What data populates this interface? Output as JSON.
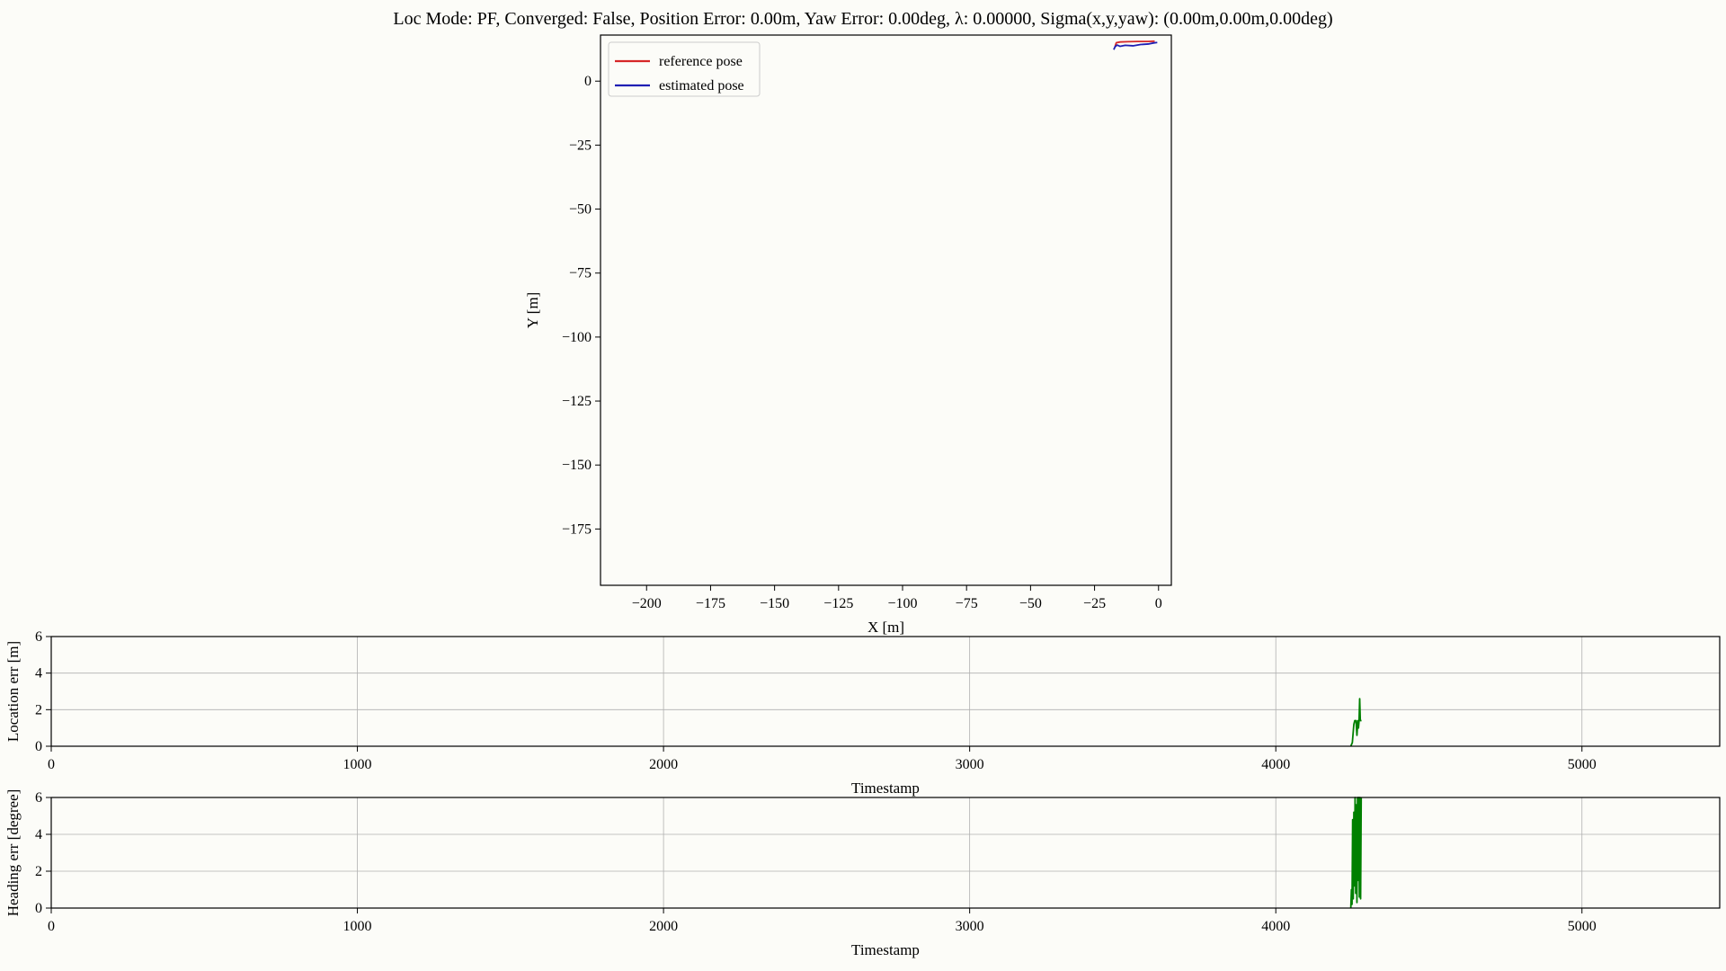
{
  "figure": {
    "title": "Loc Mode: PF, Converged: False, Position Error: 0.00m, Yaw Error: 0.00deg, λ: 0.00000, Sigma(x,y,yaw): (0.00m,0.00m,0.00deg)",
    "background": "#fcfcf8"
  },
  "chart_data": [
    {
      "type": "line",
      "xlabel": "X [m]",
      "ylabel": "Y [m]",
      "xlim": [
        -218,
        5
      ],
      "ylim": [
        -197,
        18
      ],
      "xticks": [
        -200,
        -175,
        -150,
        -125,
        -100,
        -75,
        -50,
        -25,
        0
      ],
      "yticks": [
        0,
        -25,
        -50,
        -75,
        -100,
        -125,
        -150,
        -175
      ],
      "grid": false,
      "legend_position": "top-left",
      "series": [
        {
          "name": "reference pose",
          "color": "#d62728",
          "x": [
            -17,
            -16.5,
            -15,
            -12,
            -8,
            -4,
            -1.5
          ],
          "y": [
            13.5,
            15.0,
            15.3,
            15.4,
            15.5,
            15.5,
            15.6
          ]
        },
        {
          "name": "estimated pose",
          "color": "#1f1fb4",
          "x": [
            -17.5,
            -17.0,
            -16.2,
            -15.0,
            -13.0,
            -10.0,
            -7.0,
            -4.0,
            -2.0,
            -0.5
          ],
          "y": [
            12.3,
            13.4,
            14.1,
            13.6,
            14.0,
            13.8,
            14.3,
            14.5,
            14.9,
            15.1
          ]
        }
      ]
    },
    {
      "type": "line",
      "xlabel": "Timestamp",
      "ylabel": "Location err [m]",
      "xlim": [
        0,
        5450
      ],
      "ylim": [
        0,
        6
      ],
      "xticks": [
        0,
        1000,
        2000,
        3000,
        4000,
        5000
      ],
      "yticks": [
        0,
        2,
        4,
        6
      ],
      "grid": true,
      "series": [
        {
          "color": "#008000",
          "x": [
            4245,
            4250,
            4255,
            4258,
            4262,
            4265,
            4268,
            4270,
            4272,
            4274,
            4276,
            4278,
            4280
          ],
          "y": [
            0.0,
            0.2,
            1.2,
            1.4,
            1.4,
            0.6,
            1.4,
            1.0,
            1.4,
            2.6,
            1.4,
            1.4,
            1.4
          ]
        }
      ]
    },
    {
      "type": "line",
      "xlabel": "Timestamp",
      "ylabel": "Heading err [degree]",
      "xlim": [
        0,
        5450
      ],
      "ylim": [
        0,
        6
      ],
      "xticks": [
        0,
        1000,
        2000,
        3000,
        4000,
        5000
      ],
      "yticks": [
        0,
        2,
        4,
        6
      ],
      "grid": true,
      "series": [
        {
          "color": "#008000",
          "x": [
            4245,
            4247,
            4249,
            4251,
            4253,
            4255,
            4257,
            4259,
            4261,
            4263,
            4265,
            4267,
            4269,
            4271,
            4273,
            4275,
            4277,
            4279
          ],
          "y": [
            0.0,
            1.0,
            0.2,
            4.8,
            0.5,
            5.2,
            1.2,
            6.0,
            0.8,
            5.6,
            0.3,
            6.0,
            1.5,
            6.0,
            0.6,
            6.0,
            0.5,
            6.0
          ]
        }
      ]
    }
  ]
}
